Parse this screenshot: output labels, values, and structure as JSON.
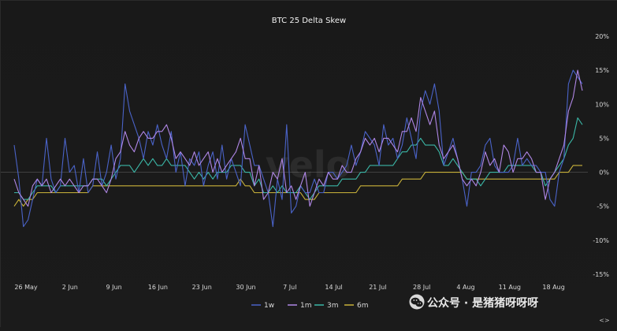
{
  "chart_data": {
    "type": "line",
    "title": "BTC 25 Delta Skew",
    "xlabel": "",
    "ylabel": "",
    "x_ticks": [
      "26 May",
      "2 Jun",
      "9 Jun",
      "16 Jun",
      "23 Jun",
      "30 Jun",
      "7 Jul",
      "14 Jul",
      "21 Jul",
      "28 Jul",
      "4 Aug",
      "11 Aug",
      "18 Aug"
    ],
    "y_ticks": [
      "20%",
      "15%",
      "10%",
      "5%",
      "0%",
      "-5%",
      "-10%",
      "-15%"
    ],
    "ylim": [
      -15,
      20
    ],
    "grid": false,
    "zero_line": true,
    "legend_position": "bottom-center",
    "background_watermark": "velo",
    "series": [
      {
        "name": "1w",
        "color": "#4a63c8",
        "values": [
          4,
          -1,
          -8,
          -7,
          -4,
          -1,
          -2,
          5,
          -1,
          -3,
          -2,
          5,
          0,
          1,
          -3,
          2,
          -3,
          -2,
          3,
          -2,
          0,
          4,
          -1,
          2,
          13,
          9,
          7,
          5,
          2,
          6,
          4,
          7,
          4,
          2,
          6,
          0,
          3,
          -2,
          2,
          1,
          3,
          -2,
          1,
          3,
          -1,
          4,
          -1,
          2,
          0,
          -2,
          7,
          4,
          1,
          1,
          -1,
          -3,
          -8,
          -1,
          -4,
          7,
          -6,
          -5,
          -2,
          -3,
          -3,
          -1,
          -3,
          -3,
          0,
          0,
          -1,
          0,
          1,
          4,
          1,
          3,
          6,
          5,
          4,
          1,
          7,
          4,
          5,
          2,
          4,
          8,
          5,
          2,
          9,
          12,
          10,
          13,
          9,
          1,
          3,
          5,
          2,
          -1,
          -5,
          0,
          0,
          1,
          4,
          5,
          1,
          0,
          0,
          0,
          1,
          5,
          1,
          2,
          1,
          1,
          0,
          0,
          -4,
          -5,
          0,
          2,
          13,
          15,
          14,
          13
        ]
      },
      {
        "name": "1m",
        "color": "#b087e6",
        "values": [
          -1,
          -3,
          -4,
          -5,
          -2,
          -1,
          -2,
          -1,
          -3,
          -2,
          -1,
          -2,
          -1,
          -2,
          -3,
          -2,
          -2,
          -1,
          -1,
          -2,
          -3,
          -1,
          2,
          3,
          6,
          4,
          3,
          5,
          6,
          5,
          5,
          6,
          6,
          7,
          5,
          2,
          3,
          2,
          1,
          3,
          1,
          2,
          3,
          0,
          2,
          0,
          1,
          2,
          3,
          5,
          2,
          2,
          -2,
          1,
          -4,
          -3,
          0,
          -1,
          2,
          -3,
          -2,
          -4,
          -2,
          0,
          -5,
          -3,
          -1,
          -2,
          0,
          -1,
          -1,
          1,
          0,
          0,
          2,
          3,
          5,
          4,
          5,
          3,
          5,
          5,
          4,
          3,
          6,
          6,
          8,
          6,
          11,
          9,
          7,
          9,
          4,
          2,
          3,
          4,
          2,
          -1,
          -2,
          -1,
          -2,
          0,
          3,
          1,
          2,
          0,
          4,
          3,
          0,
          2,
          2,
          3,
          2,
          0,
          0,
          -4,
          -1,
          0,
          2,
          4,
          9,
          11,
          15,
          12
        ]
      },
      {
        "name": "3m",
        "color": "#3bb7a7",
        "values": [
          -3,
          -3,
          -4,
          -4,
          -3,
          -2,
          -2,
          -2,
          -2,
          -3,
          -2,
          -2,
          -2,
          -2,
          -2,
          -2,
          -2,
          -1,
          -1,
          -1,
          -2,
          -1,
          0,
          1,
          1,
          1,
          0,
          1,
          2,
          1,
          2,
          1,
          1,
          2,
          1,
          1,
          1,
          1,
          0,
          -1,
          0,
          -1,
          0,
          -1,
          0,
          0,
          0,
          1,
          1,
          1,
          0,
          0,
          -2,
          -1,
          -3,
          -3,
          -2,
          -3,
          -2,
          -3,
          -3,
          -3,
          -2,
          -3,
          -4,
          -3,
          -2,
          -2,
          -2,
          -2,
          -2,
          -1,
          -1,
          -1,
          -1,
          0,
          0,
          1,
          1,
          1,
          1,
          1,
          1,
          2,
          3,
          3,
          4,
          4,
          5,
          4,
          4,
          4,
          3,
          1,
          1,
          2,
          1,
          0,
          -1,
          -1,
          -1,
          -2,
          -1,
          0,
          0,
          0,
          0,
          1,
          1,
          1,
          1,
          1,
          1,
          0,
          0,
          -2,
          -1,
          0,
          1,
          2,
          4,
          5,
          8,
          7
        ]
      },
      {
        "name": "6m",
        "color": "#c9b23a",
        "values": [
          -5,
          -4,
          -5,
          -4,
          -4,
          -3,
          -3,
          -3,
          -3,
          -3,
          -3,
          -3,
          -3,
          -3,
          -3,
          -3,
          -3,
          -2,
          -2,
          -2,
          -2,
          -2,
          -2,
          -2,
          -2,
          -2,
          -2,
          -2,
          -2,
          -2,
          -2,
          -2,
          -2,
          -2,
          -2,
          -2,
          -2,
          -2,
          -2,
          -2,
          -2,
          -2,
          -2,
          -2,
          -2,
          -2,
          -2,
          -2,
          -2,
          -1,
          -2,
          -2,
          -3,
          -3,
          -3,
          -3,
          -3,
          -3,
          -3,
          -3,
          -3,
          -3,
          -3,
          -4,
          -4,
          -4,
          -3,
          -3,
          -3,
          -3,
          -3,
          -3,
          -3,
          -3,
          -3,
          -2,
          -2,
          -2,
          -2,
          -2,
          -2,
          -2,
          -2,
          -2,
          -1,
          -1,
          -1,
          -1,
          -1,
          0,
          0,
          0,
          0,
          0,
          0,
          0,
          0,
          0,
          -1,
          -1,
          -1,
          -1,
          -1,
          -1,
          -1,
          -1,
          -1,
          -1,
          -1,
          -1,
          -1,
          -1,
          -1,
          -1,
          -1,
          -1,
          -1,
          -1,
          0,
          0,
          0,
          1,
          1,
          1
        ]
      }
    ]
  },
  "watermark": {
    "text": "公众号 · 是猪猪呀呀呀",
    "icon": "wechat-icon"
  },
  "scroll_control": {
    "label": "<>"
  }
}
